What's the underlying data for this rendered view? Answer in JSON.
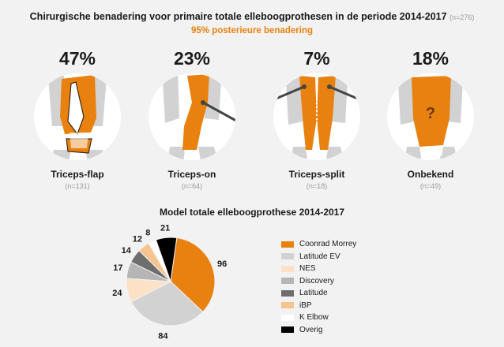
{
  "header": {
    "title": "Chirurgische benadering voor primaire totale elleboogprothesen  in de periode 2014-2017",
    "title_n": "(n=276)",
    "subtitle": "95% posterieure benadering"
  },
  "approaches": [
    {
      "percent": "47%",
      "name": "Triceps-flap",
      "count": "(n=131)"
    },
    {
      "percent": "23%",
      "name": "Triceps-on",
      "count": "(n=64)"
    },
    {
      "percent": "7%",
      "name": "Triceps-split",
      "count": "(n=18)"
    },
    {
      "percent": "18%",
      "name": "Onbekend",
      "count": "(n=49)",
      "mark": "?"
    }
  ],
  "colors": {
    "orange": "#e8810f",
    "bone": "#cfcfcf",
    "circle": "#ffffff"
  },
  "chart_data": {
    "type": "pie",
    "title": "Model totale elleboogprothese 2014-2017",
    "categories": [
      "Coonrad Morrey",
      "Latitude EV",
      "NES",
      "Discovery",
      "Latitude",
      "iBP",
      "K Elbow",
      "Overig"
    ],
    "values": [
      96,
      84,
      24,
      17,
      14,
      12,
      8,
      21
    ],
    "colors": [
      "#e8810f",
      "#d2d2d2",
      "#fbe1c6",
      "#b5b5b5",
      "#6e6e6e",
      "#f6c48e",
      "#ffffff",
      "#000000"
    ],
    "legend_position": "right"
  }
}
